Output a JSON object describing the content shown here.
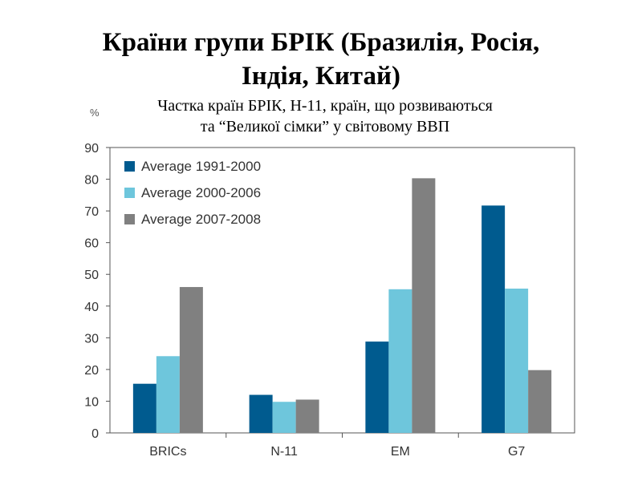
{
  "title_line1": "Країни групи БРІК (Бразилія, Росія,",
  "title_line2": "Індія, Китай)",
  "subtitle_line1": "Частка країн БРІК, Н-11, країн, що розвиваються",
  "subtitle_line2": "та “Великої сімки” у світовому ВВП",
  "chart_data": {
    "type": "bar",
    "title": "Частка країн БРІК, Н-11, країн, що розвиваються та “Великої сімки” у світовому ВВП",
    "ylabel": "%",
    "xlabel": "",
    "ylim": [
      0,
      90
    ],
    "yticks": [
      0,
      10,
      20,
      30,
      40,
      50,
      60,
      70,
      80,
      90
    ],
    "categories": [
      "BRICs",
      "N-11",
      "EM",
      "G7"
    ],
    "legend_position": "top-left",
    "series": [
      {
        "name": "Average 1991-2000",
        "color": "#005b8f",
        "values": [
          15.5,
          12,
          28.8,
          71.7
        ]
      },
      {
        "name": "Average 2000-2006",
        "color": "#6ec6dc",
        "values": [
          24.2,
          9.8,
          45.3,
          45.5
        ]
      },
      {
        "name": "Average 2007-2008",
        "color": "#808080",
        "values": [
          46,
          10.5,
          80.3,
          19.8
        ]
      }
    ]
  }
}
